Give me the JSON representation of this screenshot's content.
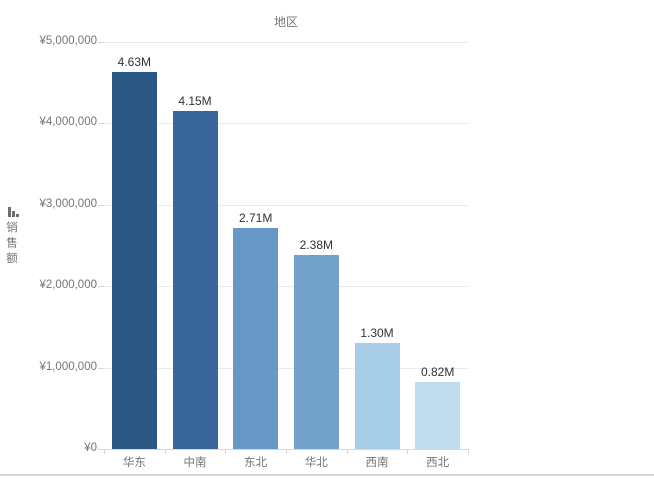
{
  "chart_data": {
    "type": "bar",
    "title": "地区",
    "ylabel": "销售额",
    "categories": [
      "华东",
      "中南",
      "东北",
      "华北",
      "西南",
      "西北"
    ],
    "values": [
      4630000,
      4150000,
      2710000,
      2380000,
      1300000,
      820000
    ],
    "value_labels": [
      "4.63M",
      "4.15M",
      "2.71M",
      "2.38M",
      "1.30M",
      "0.82M"
    ],
    "bar_colors": [
      "#2a5783",
      "#39679b",
      "#6899c6",
      "#73a3cb",
      "#a7cde7",
      "#c0ddef"
    ],
    "ylim": [
      0,
      5000000
    ],
    "yticks": [
      {
        "label": "¥0",
        "value": 0
      },
      {
        "label": "¥1,000,000",
        "value": 1000000
      },
      {
        "label": "¥2,000,000",
        "value": 2000000
      },
      {
        "label": "¥3,000,000",
        "value": 3000000
      },
      {
        "label": "¥4,000,000",
        "value": 4000000
      },
      {
        "label": "¥5,000,000",
        "value": 5000000
      }
    ],
    "grid": true,
    "legend": "none",
    "sort_order": "descending"
  },
  "icons": {
    "axis_sort": "sort-descending-bars-icon"
  },
  "colors": {
    "background": "#ffffff",
    "gridline": "#ebebeb",
    "axis_line": "#d7d7d7",
    "tick_mark": "#d7d7d7",
    "title_text": "#777777",
    "tick_text": "#757575",
    "value_text": "#323232",
    "divider": "#d8d8d8"
  }
}
